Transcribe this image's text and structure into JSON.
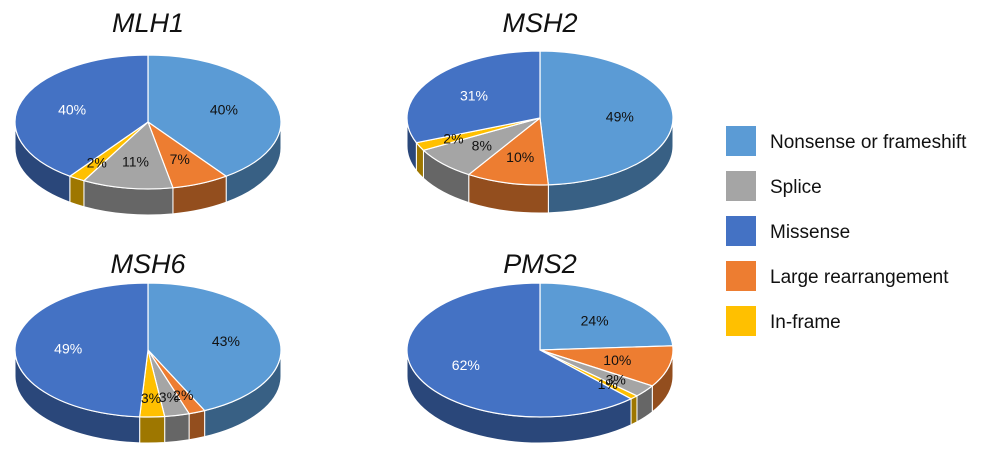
{
  "legend": [
    {
      "key": "nonsense",
      "label": "Nonsense or frameshift",
      "color": "#5B9BD5"
    },
    {
      "key": "splice",
      "label": "Splice",
      "color": "#A5A5A5"
    },
    {
      "key": "missense",
      "label": "Missense",
      "color": "#4472C4"
    },
    {
      "key": "large",
      "label": "Large rearrangement",
      "color": "#ED7D31"
    },
    {
      "key": "inframe",
      "label": "In-frame",
      "color": "#FFC000"
    }
  ],
  "chart_data": [
    {
      "type": "pie",
      "title": "MLH1",
      "slices": [
        {
          "category": "Nonsense or frameshift",
          "value": 40,
          "label": "40%"
        },
        {
          "category": "Large rearrangement",
          "value": 7,
          "label": "7%"
        },
        {
          "category": "Splice",
          "value": 11,
          "label": "11%"
        },
        {
          "category": "In-frame",
          "value": 2,
          "label": "2%"
        },
        {
          "category": "Missense",
          "value": 40,
          "label": "40%"
        }
      ]
    },
    {
      "type": "pie",
      "title": "MSH2",
      "slices": [
        {
          "category": "Nonsense or frameshift",
          "value": 49,
          "label": "49%"
        },
        {
          "category": "Large rearrangement",
          "value": 10,
          "label": "10%"
        },
        {
          "category": "Splice",
          "value": 8,
          "label": "8%"
        },
        {
          "category": "In-frame",
          "value": 2,
          "label": "2%"
        },
        {
          "category": "Missense",
          "value": 31,
          "label": "31%"
        }
      ]
    },
    {
      "type": "pie",
      "title": "MSH6",
      "slices": [
        {
          "category": "Nonsense or frameshift",
          "value": 43,
          "label": "43%"
        },
        {
          "category": "Large rearrangement",
          "value": 2,
          "label": "2%"
        },
        {
          "category": "Splice",
          "value": 3,
          "label": "3%"
        },
        {
          "category": "In-frame",
          "value": 3,
          "label": "3%"
        },
        {
          "category": "Missense",
          "value": 49,
          "label": "49%"
        }
      ]
    },
    {
      "type": "pie",
      "title": "PMS2",
      "slices": [
        {
          "category": "Nonsense or frameshift",
          "value": 24,
          "label": "24%"
        },
        {
          "category": "Large rearrangement",
          "value": 10,
          "label": "10%"
        },
        {
          "category": "Splice",
          "value": 3,
          "label": "3%"
        },
        {
          "category": "In-frame",
          "value": 1,
          "label": "1%"
        },
        {
          "category": "Missense",
          "value": 62,
          "label": "62%"
        }
      ]
    }
  ]
}
